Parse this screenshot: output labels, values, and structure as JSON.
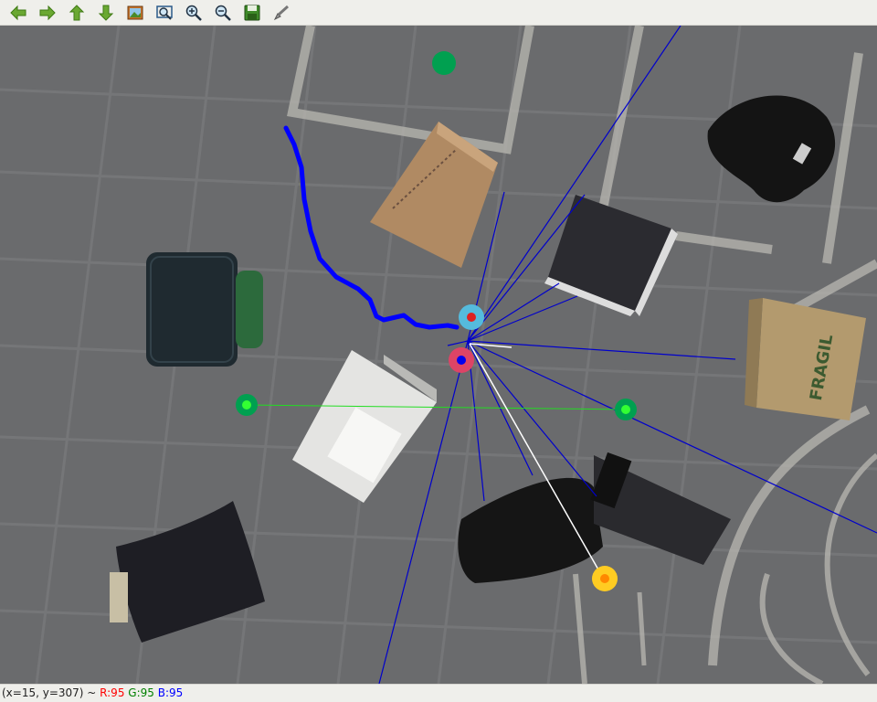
{
  "toolbar": {
    "buttons": [
      {
        "icon": "arrow-left-icon"
      },
      {
        "icon": "arrow-right-icon"
      },
      {
        "icon": "arrow-up-icon"
      },
      {
        "icon": "arrow-down-icon"
      },
      {
        "icon": "image-icon"
      },
      {
        "icon": "zoom-fit-icon"
      },
      {
        "icon": "zoom-in-icon"
      },
      {
        "icon": "zoom-out-icon"
      },
      {
        "icon": "save-icon"
      },
      {
        "icon": "settings-brush-icon"
      }
    ]
  },
  "viewer": {
    "label_fragile": "FRAGIL"
  },
  "status": {
    "coords": "(x=15, y=307) ~ ",
    "r_label": "R:95",
    "g_label": "G:95",
    "b_label": "B:95",
    "r_color": "#ff0000",
    "g_color": "#008000",
    "b_color": "#0000ff"
  },
  "colors": {
    "path": "#0000ff",
    "rays": "#0000cc",
    "goal": "#00aa44",
    "robot": "#55bbdd",
    "target": "#ffcc22"
  }
}
